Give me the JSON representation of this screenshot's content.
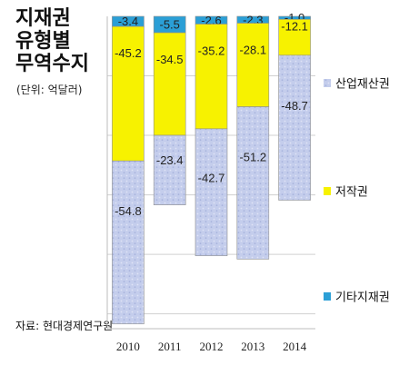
{
  "title_lines": [
    "지재권",
    "유형별",
    "무역수지"
  ],
  "unit_note": "(단위: 억달러)",
  "source": "자료: 현대경제연구원",
  "chart_data": {
    "type": "bar",
    "stacked": true,
    "categories": [
      "2010",
      "2011",
      "2012",
      "2013",
      "2014"
    ],
    "series": [
      {
        "name": "기타지재권",
        "values": [
          -3.4,
          -5.5,
          -2.6,
          -2.3,
          -1.0
        ],
        "labels": [
          "-3.4",
          "-5.5",
          "-2.6",
          "-2.3",
          "-1.0"
        ],
        "color": "#2b9fd6"
      },
      {
        "name": "저작권",
        "values": [
          -45.2,
          -34.5,
          -35.2,
          -28.1,
          -12.1
        ],
        "labels": [
          "-45.2",
          "-34.5",
          "-35.2",
          "-28.1",
          "-12.1"
        ],
        "color": "#f7f200"
      },
      {
        "name": "산업재산권",
        "values": [
          -54.8,
          -23.4,
          -42.7,
          -51.2,
          -48.7
        ],
        "labels": [
          "-54.8",
          "-23.4",
          "-42.7",
          "-51.2",
          "-48.7"
        ],
        "color": "#c4cdec"
      }
    ],
    "ylim": [
      -105,
      0
    ],
    "grid": true,
    "legend_position": "right"
  }
}
